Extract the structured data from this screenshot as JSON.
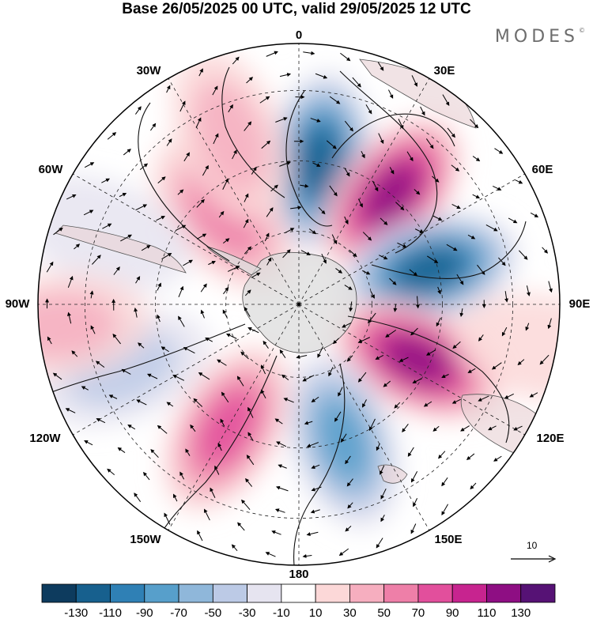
{
  "title": "Base 26/05/2025 00 UTC, valid 29/05/2025 12 UTC",
  "brand": "MODES",
  "brand_mark": "©",
  "longitude_labels": {
    "lon_0": "0",
    "lon_30e": "30E",
    "lon_60e": "60E",
    "lon_90e": "90E",
    "lon_120e": "120E",
    "lon_150e": "150E",
    "lon_180": "180",
    "lon_150w": "150W",
    "lon_120w": "120W",
    "lon_90w": "90W",
    "lon_60w": "60W",
    "lon_30w": "30W"
  },
  "reference_vector": {
    "label": "10"
  },
  "colorbar": {
    "tick_labels": [
      "-130",
      "-110",
      "-90",
      "-70",
      "-50",
      "-30",
      "-10",
      "10",
      "30",
      "50",
      "70",
      "90",
      "110",
      "130"
    ],
    "colors": [
      "#0d3b5e",
      "#17608e",
      "#2f80b5",
      "#579fcb",
      "#8fb7da",
      "#bccae6",
      "#e6e4f0",
      "#ffffff",
      "#fcd8d8",
      "#f6aebf",
      "#ee7fa8",
      "#e24f9c",
      "#c7248f",
      "#8e0e83",
      "#561275"
    ]
  },
  "anomaly_centers": [
    {
      "lon": 8,
      "r_norm": 0.55,
      "value": -115
    },
    {
      "lon": 40,
      "r_norm": 0.55,
      "value": 125
    },
    {
      "lon": 75,
      "r_norm": 0.52,
      "value": -125
    },
    {
      "lon": 115,
      "r_norm": 0.5,
      "value": 125
    },
    {
      "lon": 162,
      "r_norm": 0.55,
      "value": -75
    },
    {
      "lon": -150,
      "r_norm": 0.55,
      "value": 70
    },
    {
      "lon": -110,
      "r_norm": 0.72,
      "value": -35
    },
    {
      "lon": -40,
      "r_norm": 0.45,
      "value": 55
    },
    {
      "lon": -22,
      "r_norm": 0.7,
      "value": 45
    },
    {
      "lon": -70,
      "r_norm": 0.8,
      "value": -20
    },
    {
      "lon": -95,
      "r_norm": 0.92,
      "value": 30
    },
    {
      "lon": 100,
      "r_norm": 0.95,
      "value": 25
    }
  ]
}
